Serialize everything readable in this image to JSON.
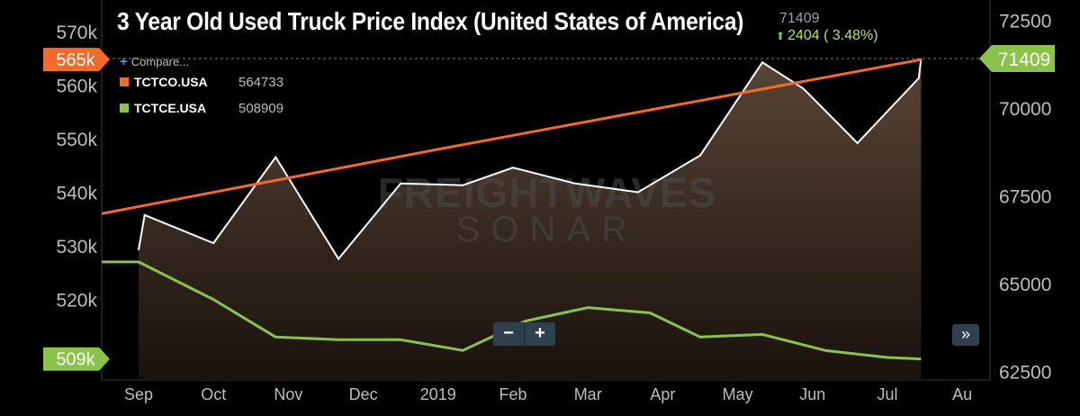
{
  "chart_data": {
    "type": "line",
    "title": "3 Year Old Used Truck Price Index (United States of America)",
    "header": {
      "price": "71409",
      "change": "2404",
      "change_pct": "( 3.48%)"
    },
    "compare_label": "Compare...",
    "watermark": {
      "line1": "FREIGHTWAVES",
      "line2": "SONAR"
    },
    "x_labels": [
      "Sep",
      "Oct",
      "Nov",
      "Dec",
      "2019",
      "Feb",
      "Mar",
      "Apr",
      "May",
      "Jun",
      "Jul",
      "Au"
    ],
    "left_axis": {
      "ylim": [
        505000,
        575000
      ],
      "ticks": [
        520000,
        530000,
        540000,
        550000,
        560000,
        570000
      ],
      "tick_labels": [
        "520k",
        "530k",
        "540k",
        "550k",
        "560k",
        "570k"
      ]
    },
    "right_axis": {
      "ylim": [
        62250,
        72950
      ],
      "ticks": [
        62500,
        65000,
        67500,
        70000,
        72500
      ],
      "tick_labels": [
        "62500",
        "65000",
        "67500",
        "70000",
        "72500"
      ]
    },
    "series": [
      {
        "name": "3 Year Old Used Truck Price Index",
        "axis": "right",
        "color": "#ffffff",
        "fill": true,
        "x": [
          0,
          0.08,
          1.0,
          1.83,
          2.67,
          3.5,
          4.33,
          5.0,
          5.83,
          6.67,
          7.5,
          8.33,
          8.88,
          9.6,
          10.42,
          10.45
        ],
        "values": [
          65950,
          66950,
          66150,
          68600,
          65700,
          67850,
          67800,
          68300,
          67850,
          67600,
          68650,
          71300,
          70550,
          69000,
          70850,
          71409
        ],
        "last_label": "71409"
      },
      {
        "name": "TCTCO.USA",
        "axis": "left",
        "color": "#f26b2b",
        "x": [
          -0.65,
          4.0,
          10.45
        ],
        "values": [
          536000,
          548000,
          564733
        ],
        "legend_value": "564733",
        "last_label": "565k"
      },
      {
        "name": "TCTCE.USA",
        "axis": "left",
        "color": "#8bc34a",
        "x": [
          -0.65,
          0.0,
          1.0,
          1.83,
          2.67,
          3.5,
          4.33,
          5.17,
          6.0,
          6.83,
          7.5,
          8.33,
          9.17,
          10.0,
          10.45
        ],
        "values": [
          527000,
          527000,
          520000,
          513000,
          512500,
          512500,
          510500,
          516000,
          518500,
          517500,
          513000,
          513500,
          510500,
          509200,
          508909
        ],
        "legend_value": "508909",
        "last_label": "509k"
      }
    ]
  },
  "controls": {
    "zoom_out": "−",
    "zoom_in": "+",
    "pan_right": "»"
  }
}
